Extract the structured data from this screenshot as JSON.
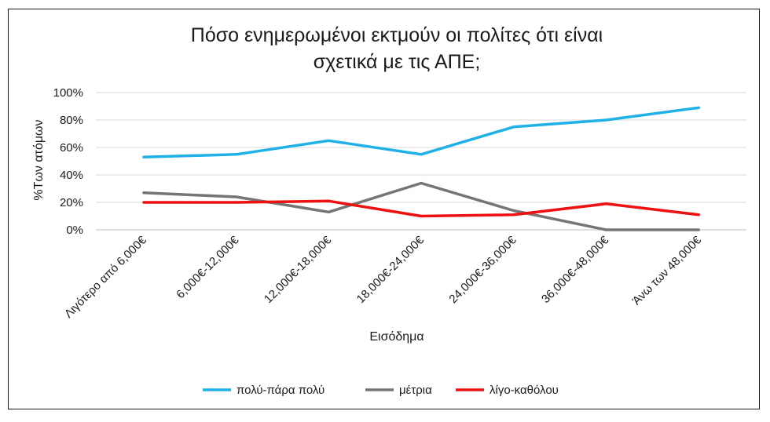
{
  "chart_data": {
    "type": "line",
    "title_lines": [
      "Πόσο ενημερωμένοι εκτμούν οι πολίτες ότι είναι",
      "σχετικά με τις ΑΠΕ;"
    ],
    "xlabel": "Εισόδημα",
    "ylabel": "%Των ατόμων",
    "ylim": [
      0,
      1
    ],
    "yticks": [
      0,
      0.2,
      0.4,
      0.6,
      0.8,
      1.0
    ],
    "ytick_labels": [
      "0%",
      "20%",
      "40%",
      "60%",
      "80%",
      "100%"
    ],
    "categories": [
      "Λιγότερο από 6,000€",
      "6,000€-12,000€",
      "12,000€-18,000€",
      "18,000€-24,000€",
      "24,000€-36,000€",
      "36,000€-48,000€",
      "Άνω των 48,000€"
    ],
    "grid": true,
    "legend_position": "bottom",
    "series": [
      {
        "name": "πολύ-πάρα πολύ",
        "color": "#1fb1e6",
        "values": [
          0.53,
          0.55,
          0.65,
          0.55,
          0.75,
          0.8,
          0.89
        ]
      },
      {
        "name": "μέτρια",
        "color": "#757575",
        "values": [
          0.27,
          0.24,
          0.13,
          0.34,
          0.14,
          0.0,
          0.0
        ]
      },
      {
        "name": "λίγο-καθόλου",
        "color": "#ee1111",
        "values": [
          0.2,
          0.2,
          0.21,
          0.1,
          0.11,
          0.19,
          0.11
        ]
      }
    ]
  }
}
